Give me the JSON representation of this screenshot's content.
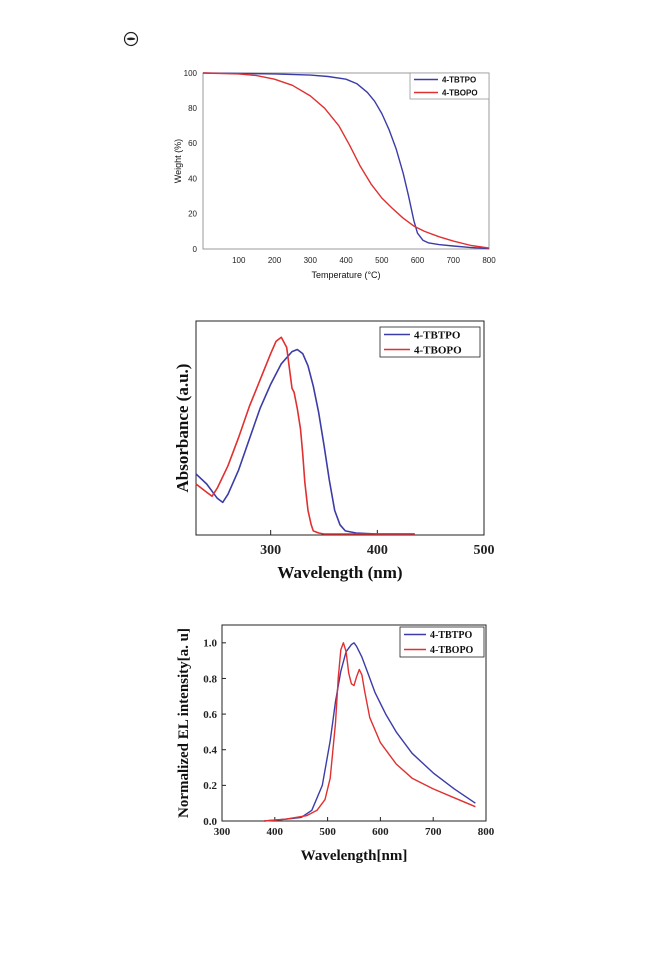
{
  "colors": {
    "blue": "#3c3ca8",
    "red": "#e03030",
    "axis": "#555555"
  },
  "logo": {
    "icon": "journal-logo-icon"
  },
  "chart_data": [
    {
      "type": "line",
      "title": "",
      "xlabel": "Temperature (°C)",
      "ylabel": "Weight (%)",
      "xlim": [
        0,
        800
      ],
      "ylim": [
        0,
        100
      ],
      "xticks": [
        100,
        200,
        300,
        400,
        500,
        600,
        700,
        800
      ],
      "yticks": [
        0,
        20,
        40,
        60,
        80,
        100
      ],
      "legend_position": "top-right",
      "series": [
        {
          "name": "4-TBTPO",
          "color": "#3c3ca8",
          "x": [
            0,
            100,
            200,
            300,
            350,
            400,
            430,
            460,
            480,
            500,
            520,
            540,
            560,
            575,
            590,
            600,
            615,
            630,
            660,
            700,
            750,
            800
          ],
          "y": [
            100,
            99.8,
            99.5,
            98.8,
            98,
            96.5,
            94,
            89,
            84,
            77,
            68,
            57,
            43,
            30,
            16,
            9,
            5,
            3.5,
            2.5,
            1.7,
            0.8,
            0.2
          ]
        },
        {
          "name": "4-TBOPO",
          "color": "#e03030",
          "x": [
            0,
            100,
            150,
            200,
            250,
            300,
            340,
            380,
            410,
            440,
            470,
            500,
            530,
            560,
            590,
            620,
            660,
            700,
            750,
            800
          ],
          "y": [
            100,
            99.5,
            98.5,
            96.5,
            93,
            87,
            80,
            70,
            59,
            47,
            37,
            29,
            23,
            17.5,
            13,
            10,
            7,
            4.5,
            2,
            0.5
          ]
        }
      ]
    },
    {
      "type": "line",
      "title": "",
      "xlabel": "Wavelength (nm)",
      "ylabel": "Absorbance (a.u.)",
      "xlim": [
        230,
        500
      ],
      "ylim": [
        0,
        1.05
      ],
      "xticks": [
        300,
        400,
        500
      ],
      "yticks": [],
      "legend_position": "top-right",
      "series": [
        {
          "name": "4-TBTPO",
          "color": "#3c3ca8",
          "x": [
            230,
            240,
            250,
            255,
            260,
            270,
            280,
            290,
            300,
            310,
            320,
            325,
            330,
            335,
            340,
            345,
            350,
            355,
            360,
            365,
            370,
            380,
            400,
            435
          ],
          "y": [
            0.3,
            0.25,
            0.18,
            0.16,
            0.2,
            0.32,
            0.47,
            0.62,
            0.74,
            0.84,
            0.9,
            0.91,
            0.89,
            0.83,
            0.73,
            0.6,
            0.44,
            0.27,
            0.12,
            0.05,
            0.02,
            0.01,
            0.005,
            0.005
          ]
        },
        {
          "name": "4-TBOPO",
          "color": "#e03030",
          "x": [
            230,
            240,
            245,
            250,
            260,
            270,
            280,
            290,
            300,
            305,
            310,
            315,
            318,
            320,
            322,
            325,
            328,
            330,
            332,
            335,
            338,
            340,
            345,
            350,
            360,
            380,
            400,
            435
          ],
          "y": [
            0.25,
            0.21,
            0.19,
            0.23,
            0.34,
            0.48,
            0.63,
            0.76,
            0.89,
            0.95,
            0.97,
            0.92,
            0.8,
            0.72,
            0.7,
            0.62,
            0.52,
            0.4,
            0.26,
            0.12,
            0.05,
            0.02,
            0.01,
            0.005,
            0.005,
            0.005,
            0.005,
            0.005
          ]
        }
      ]
    },
    {
      "type": "line",
      "title": "",
      "xlabel": "Wavelength[nm]",
      "ylabel": "Normalized EL intensity[a. u]",
      "xlim": [
        300,
        800
      ],
      "ylim": [
        0,
        1.1
      ],
      "xticks": [
        300,
        400,
        500,
        600,
        700,
        800
      ],
      "yticks": [
        0.0,
        0.2,
        0.4,
        0.6,
        0.8,
        1.0
      ],
      "legend_position": "top-right",
      "series": [
        {
          "name": "4-TBTPO",
          "color": "#3c3ca8",
          "x": [
            380,
            420,
            450,
            470,
            490,
            505,
            515,
            525,
            535,
            545,
            550,
            555,
            565,
            575,
            590,
            610,
            630,
            660,
            700,
            740,
            780
          ],
          "y": [
            0.0,
            0.01,
            0.02,
            0.06,
            0.2,
            0.45,
            0.67,
            0.84,
            0.95,
            0.99,
            1.0,
            0.98,
            0.92,
            0.84,
            0.72,
            0.6,
            0.5,
            0.38,
            0.27,
            0.18,
            0.1
          ]
        },
        {
          "name": "4-TBOPO",
          "color": "#e03030",
          "x": [
            380,
            420,
            460,
            480,
            495,
            505,
            515,
            520,
            525,
            530,
            535,
            540,
            545,
            550,
            555,
            560,
            565,
            570,
            580,
            600,
            630,
            660,
            700,
            740,
            780
          ],
          "y": [
            0.0,
            0.01,
            0.03,
            0.06,
            0.12,
            0.24,
            0.55,
            0.8,
            0.96,
            1.0,
            0.95,
            0.83,
            0.77,
            0.76,
            0.81,
            0.85,
            0.82,
            0.73,
            0.58,
            0.44,
            0.32,
            0.24,
            0.18,
            0.13,
            0.08
          ]
        }
      ]
    }
  ]
}
